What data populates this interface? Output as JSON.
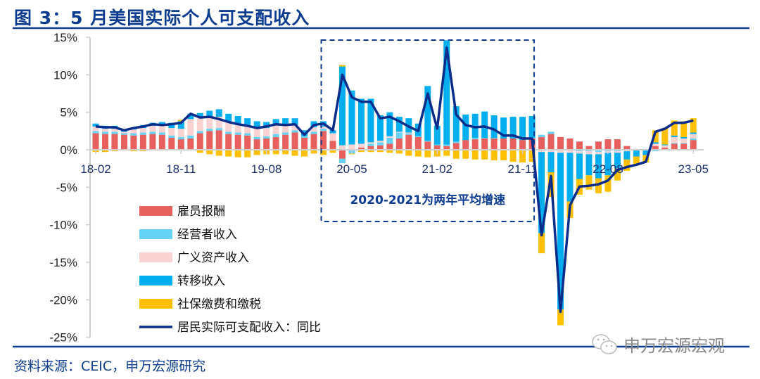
{
  "header": {
    "title": "图 3：5 月美国实际个人可支配收入"
  },
  "footer": {
    "source": "资料来源：CEIC，申万宏源研究",
    "watermark": "申万宏源宏观"
  },
  "colors": {
    "comp": "#E8605E",
    "biz": "#66D3F5",
    "asset": "#F9D2D2",
    "transfer": "#00AEEF",
    "tax": "#FFC000",
    "line": "#0A2D8C",
    "rule": "#0B3C8F"
  },
  "chart_data": {
    "type": "bar",
    "title": "5 月美国实际个人可支配收入",
    "ylim": [
      -25,
      15
    ],
    "yticks": [
      "15%",
      "10%",
      "5%",
      "0%",
      "-5%",
      "-10%",
      "-15%",
      "-20%",
      "-25%"
    ],
    "ytick_values": [
      15,
      10,
      5,
      0,
      -5,
      -10,
      -15,
      -20,
      -25
    ],
    "x_start": "2018-02",
    "xticks": [
      {
        "i": 0,
        "label": "18-02"
      },
      {
        "i": 9,
        "label": "18-11"
      },
      {
        "i": 18,
        "label": "19-08"
      },
      {
        "i": 27,
        "label": "20-05"
      },
      {
        "i": 36,
        "label": "21-02"
      },
      {
        "i": 45,
        "label": "21-11"
      },
      {
        "i": 54,
        "label": "22-08"
      },
      {
        "i": 63,
        "label": "23-05"
      }
    ],
    "annotation": "2020-2021为两年平均增速",
    "annotation_range": [
      24,
      46
    ],
    "legend": [
      "雇员报酬",
      "经营者收入",
      "广义资产收入",
      "转移收入",
      "社保缴费和缴税",
      "居民实际可支配收入：同比"
    ],
    "series": [
      {
        "name": "雇员报酬",
        "key": "comp",
        "values": [
          2.2,
          2.1,
          2.1,
          2.0,
          1.9,
          2.0,
          2.1,
          2.0,
          1.6,
          1.4,
          1.5,
          2.2,
          2.5,
          2.6,
          2.1,
          2.0,
          1.9,
          1.4,
          1.5,
          1.7,
          2.0,
          2.3,
          1.6,
          2.1,
          2.5,
          1.2,
          -1.2,
          0.0,
          0.3,
          0.5,
          0.6,
          0.8,
          1.5,
          2.0,
          1.7,
          1.1,
          0.6,
          0.5,
          0.9,
          1.3,
          1.4,
          1.5,
          1.5,
          1.5,
          1.5,
          1.3,
          1.5,
          1.7,
          2.1,
          1.7,
          1.5,
          1.1,
          0.5,
          1.1,
          1.4,
          1.4,
          0.5,
          0.1,
          0.1,
          0.5,
          0.3,
          0.8,
          0.8,
          1.3
        ]
      },
      {
        "name": "经营者收入",
        "key": "biz",
        "values": [
          0.3,
          0.3,
          0.3,
          0.2,
          0.3,
          0.3,
          0.3,
          0.3,
          0.3,
          0.3,
          0.4,
          0.3,
          0.3,
          0.3,
          0.3,
          0.3,
          0.3,
          0.3,
          0.3,
          0.4,
          0.3,
          0.3,
          0.2,
          0.3,
          0.3,
          -0.1,
          -0.6,
          -0.5,
          0.0,
          0.3,
          0.4,
          0.8,
          0.8,
          0.2,
          0.1,
          0.1,
          0.1,
          0.2,
          0.2,
          0.0,
          0.2,
          0.1,
          0.1,
          0.0,
          0.0,
          0.0,
          0.1,
          0.3,
          0.3,
          0.0,
          0.0,
          -0.2,
          -0.2,
          -0.3,
          -0.2,
          -0.2,
          -0.1,
          0.0,
          0.0,
          -0.2,
          0.0,
          0.1,
          0.1,
          0.2
        ]
      },
      {
        "name": "广义资产收入",
        "key": "asset",
        "values": [
          0.6,
          0.4,
          0.4,
          0.2,
          0.5,
          0.6,
          0.8,
          1.0,
          1.0,
          1.1,
          2.2,
          1.8,
          1.5,
          1.5,
          1.4,
          1.2,
          1.1,
          1.2,
          1.1,
          1.2,
          1.0,
          0.7,
          0.0,
          0.6,
          0.3,
          1.0,
          0.6,
          0.7,
          0.5,
          0.2,
          0.2,
          0.2,
          0.1,
          0.1,
          0.0,
          0.0,
          0.0,
          0.0,
          0.0,
          0.0,
          0.0,
          0.0,
          0.0,
          0.0,
          0.0,
          0.0,
          0.0,
          -0.3,
          -0.3,
          -0.4,
          -0.4,
          -0.3,
          -0.4,
          -0.3,
          -0.2,
          -0.2,
          -0.1,
          -0.1,
          -0.1,
          0.3,
          0.3,
          0.8,
          0.6,
          0.6
        ]
      },
      {
        "name": "转移收入",
        "key": "transfer",
        "values": [
          0.4,
          0.4,
          0.4,
          0.2,
          0.3,
          0.4,
          0.4,
          0.4,
          0.7,
          1.0,
          0.7,
          0.6,
          0.9,
          1.0,
          1.0,
          1.0,
          0.9,
          0.9,
          0.8,
          0.8,
          0.9,
          0.9,
          0.8,
          0.8,
          0.7,
          0.4,
          10.5,
          7.2,
          6.0,
          5.8,
          3.4,
          3.2,
          2.0,
          1.9,
          1.7,
          7.3,
          2.5,
          13.9,
          4.7,
          3.4,
          3.2,
          3.5,
          3.0,
          2.8,
          2.9,
          3.1,
          2.9,
          -10.8,
          -2.7,
          -20.9,
          -6.5,
          -3.4,
          -2.8,
          -3.2,
          -3.0,
          -2.1,
          -1.1,
          -0.8,
          -0.6,
          0.2,
          0.1,
          0.2,
          0.2,
          0.2
        ]
      },
      {
        "name": "社保缴费和缴税",
        "key": "tax",
        "values": [
          -0.3,
          -0.3,
          -0.2,
          -0.1,
          -0.2,
          -0.2,
          -0.1,
          0.0,
          0.0,
          0.2,
          0.0,
          -0.4,
          -0.6,
          -0.8,
          -0.9,
          -1.0,
          -1.0,
          -0.7,
          -0.6,
          -0.6,
          -0.6,
          -0.8,
          -0.9,
          -0.5,
          -0.7,
          -0.3,
          0.2,
          -0.1,
          -0.3,
          -0.3,
          -0.3,
          -0.4,
          -0.5,
          -0.8,
          -0.9,
          -1.0,
          -0.9,
          -0.8,
          -1.2,
          -1.2,
          -1.3,
          -1.3,
          -1.4,
          -1.4,
          -1.6,
          -1.7,
          -1.6,
          -2.7,
          -3.3,
          -2.1,
          -2.2,
          -2.1,
          -1.9,
          -2.0,
          -2.2,
          -1.6,
          -1.5,
          -1.2,
          -1.0,
          1.6,
          2.2,
          2.0,
          2.1,
          1.9
        ]
      },
      {
        "name": "居民实际可支配收入：同比",
        "key": "line",
        "type": "line",
        "values": [
          3.1,
          3.0,
          3.0,
          2.6,
          2.9,
          3.1,
          3.4,
          3.3,
          3.4,
          3.6,
          4.8,
          4.3,
          4.4,
          4.1,
          3.7,
          3.4,
          3.2,
          2.9,
          3.1,
          3.4,
          3.3,
          3.4,
          2.0,
          3.3,
          3.5,
          2.6,
          10.0,
          7.0,
          6.4,
          6.4,
          4.2,
          4.4,
          3.8,
          3.1,
          2.5,
          7.5,
          2.8,
          13.6,
          4.7,
          3.3,
          3.0,
          3.1,
          2.7,
          1.9,
          1.9,
          1.5,
          1.5,
          -11.4,
          -3.5,
          -21.6,
          -7.4,
          -4.9,
          -4.8,
          -4.6,
          -4.1,
          -2.7,
          -2.3,
          -2.0,
          -1.6,
          2.4,
          2.8,
          3.6,
          3.6,
          3.9
        ]
      }
    ]
  }
}
